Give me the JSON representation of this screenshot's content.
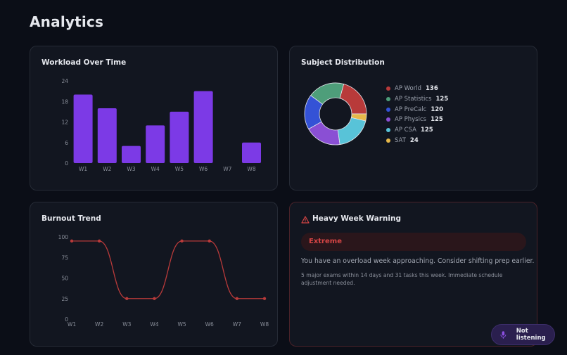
{
  "page": {
    "title": "Analytics"
  },
  "workload": {
    "title": "Workload Over Time"
  },
  "distribution": {
    "title": "Subject Distribution"
  },
  "burnout": {
    "title": "Burnout Trend"
  },
  "warning": {
    "title": "Heavy Week Warning",
    "icon": "warning-triangle-icon",
    "level": "Extreme",
    "message": "You have an overload week approaching. Consider shifting prep earlier.",
    "detail": "5 major exams within 14 days and 31 tasks this week. Immediate schedule adjustment needed."
  },
  "voice": {
    "label": "Not listening",
    "icon": "microphone-icon"
  },
  "chart_data": [
    {
      "type": "bar",
      "title": "Workload Over Time",
      "categories": [
        "W1",
        "W2",
        "W3",
        "W4",
        "W5",
        "W6",
        "W7",
        "W8"
      ],
      "values": [
        20,
        16,
        5,
        11,
        15,
        21,
        0,
        6
      ],
      "yticks": [
        "0",
        "6",
        "12",
        "18",
        "24"
      ],
      "ylim": [
        0,
        24
      ],
      "color": "#7c3ae6"
    },
    {
      "type": "pie",
      "title": "Subject Distribution",
      "donut": true,
      "slices": [
        {
          "label": "AP World",
          "value": 136,
          "color": "#b83a3a"
        },
        {
          "label": "AP Statistics",
          "value": 125,
          "color": "#4e9e7a"
        },
        {
          "label": "AP PreCalc",
          "value": 120,
          "color": "#3452d6"
        },
        {
          "label": "AP Physics",
          "value": 125,
          "color": "#8a4fd4"
        },
        {
          "label": "AP CSA",
          "value": 125,
          "color": "#58c3d8"
        },
        {
          "label": "SAT",
          "value": 24,
          "color": "#e7b84a"
        }
      ]
    },
    {
      "type": "line",
      "title": "Burnout Trend",
      "categories": [
        "W1",
        "W2",
        "W3",
        "W4",
        "W5",
        "W6",
        "W7",
        "W8"
      ],
      "values": [
        95,
        95,
        25,
        25,
        95,
        95,
        25,
        25
      ],
      "yticks": [
        "0",
        "25",
        "50",
        "75",
        "100"
      ],
      "ylim": [
        0,
        100
      ],
      "color": "#b83a3a"
    }
  ]
}
